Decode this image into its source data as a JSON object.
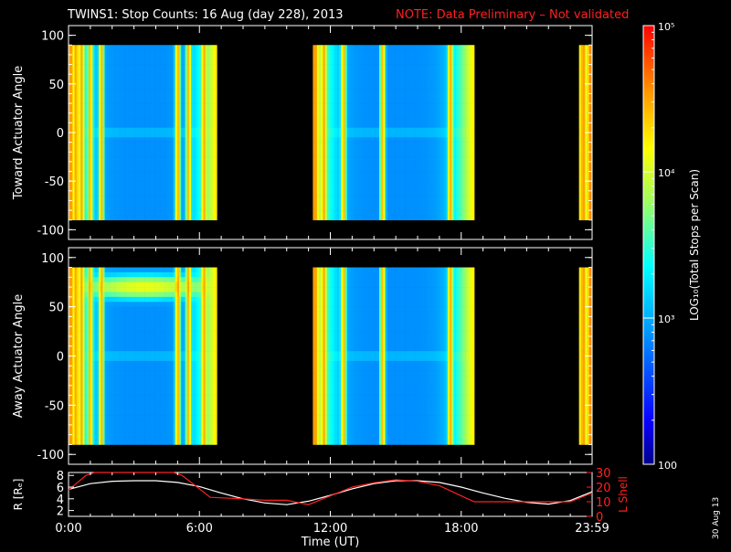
{
  "title": {
    "main": "TWINS1: Stop Counts: 16 Aug (day 228), 2013",
    "note": "NOTE: Data Preliminary – Not validated"
  },
  "colors": {
    "background": "#000000",
    "foreground": "#ffffff",
    "note": "#ff2020",
    "lshell": "#ff2020",
    "r_trace": "#ffffff"
  },
  "chart_data": [
    {
      "type": "heatmap",
      "ylabel": "Toward Actuator Angle",
      "xlim": [
        0,
        24
      ],
      "ylim": [
        -110,
        110
      ],
      "yticks": [
        -100,
        -50,
        0,
        50,
        100
      ],
      "data_ylim": [
        -90,
        90
      ],
      "coverage": [
        [
          0,
          6.8
        ],
        [
          11.2,
          18.6
        ],
        [
          23.4,
          24
        ]
      ],
      "bright_columns_hours": [
        0.1,
        0.35,
        0.6,
        1.0,
        1.5,
        5.0,
        5.5,
        6.2,
        11.3,
        11.7,
        12.6,
        14.4,
        17.5,
        23.6,
        23.9
      ],
      "background_level": 750
    },
    {
      "type": "heatmap",
      "ylabel": "Away Actuator Angle",
      "xlim": [
        0,
        24
      ],
      "ylim": [
        -110,
        110
      ],
      "yticks": [
        -100,
        -50,
        0,
        50,
        100
      ],
      "data_ylim": [
        -90,
        90
      ],
      "coverage": [
        [
          0,
          6.8
        ],
        [
          11.2,
          18.6
        ],
        [
          23.4,
          24
        ]
      ],
      "bright_columns_hours": [
        0.1,
        0.35,
        0.6,
        1.0,
        1.5,
        5.0,
        5.5,
        6.2,
        11.3,
        11.7,
        12.6,
        14.4,
        17.5,
        23.6,
        23.9
      ],
      "background_level": 750,
      "band": {
        "angle": 70,
        "from_hour": 1.0,
        "to_hour": 6.0,
        "peak": 12000
      }
    },
    {
      "type": "colorbar",
      "label": "LOG₁₀(Total Stops per Scan)",
      "scale": "log",
      "range": [
        100,
        100000
      ],
      "tick_labels": [
        "100",
        "10³",
        "10⁴",
        "10⁵"
      ],
      "tick_values": [
        100,
        1000,
        10000,
        100000
      ]
    },
    {
      "type": "line",
      "ylabel": "R [Rₑ]",
      "ylabel_right": "L Shell",
      "xlabel": "Time (UT)",
      "xlim": [
        0,
        24
      ],
      "ylim": [
        1,
        8.5
      ],
      "yticks": [
        2,
        4,
        6,
        8
      ],
      "ylim_right": [
        0,
        30
      ],
      "yticks_right": [
        0,
        10,
        20,
        30
      ],
      "x_tick_labels": [
        "0:00",
        "6:00",
        "12:00",
        "18:00",
        "23:59"
      ],
      "x_tick_values": [
        0,
        6,
        12,
        18,
        24
      ],
      "series": [
        {
          "axis": "left",
          "x": [
            0,
            1,
            2,
            3,
            4,
            5,
            6,
            7,
            8,
            9,
            10,
            11,
            12,
            13,
            14,
            15,
            16,
            17,
            18,
            19,
            20,
            21,
            22,
            23,
            24
          ],
          "y": [
            5.6,
            6.6,
            7.0,
            7.1,
            7.1,
            6.8,
            6.1,
            5.0,
            4.0,
            3.3,
            3.0,
            3.6,
            4.6,
            5.7,
            6.6,
            7.1,
            7.1,
            6.8,
            6.0,
            5.0,
            4.1,
            3.4,
            3.1,
            3.7,
            5.2
          ]
        },
        {
          "axis": "right",
          "x": [
            0,
            0.8,
            1.2,
            4.8,
            5.2,
            6.5,
            8,
            9,
            10,
            11,
            12,
            13,
            14,
            15,
            16,
            17,
            18,
            18.6,
            19,
            20,
            21,
            22,
            23,
            24
          ],
          "y": [
            18,
            28,
            31,
            31,
            28,
            13,
            12,
            11,
            11,
            8,
            14,
            20,
            23,
            25,
            24,
            21,
            14,
            10,
            10,
            10,
            10,
            10,
            10,
            16
          ]
        }
      ]
    }
  ],
  "xaxis": {
    "label": "Time (UT)"
  },
  "date_stamp": "30 Aug 13"
}
